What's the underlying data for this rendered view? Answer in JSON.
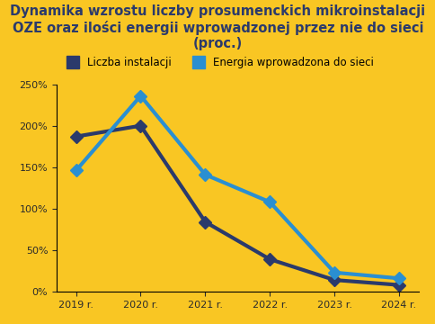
{
  "chart_data": {
    "type": "line",
    "title": "Dynamika wzrostu liczby prosumenckich mikroinstalacji OZE oraz ilości energii wprowadzonej przez nie do sieci (proc.)",
    "categories": [
      "2019 r.",
      "2020 r.",
      "2021 r.",
      "2022 r.",
      "2023 r.",
      "2024 r."
    ],
    "series": [
      {
        "name": "Liczba instalacji",
        "color": "#2b3a6b",
        "marker": "D",
        "line_style": "solid",
        "values": [
          187,
          200,
          84,
          39,
          14,
          8
        ]
      },
      {
        "name": "Energia wprowadzona do sieci",
        "color": "#2a8fd1",
        "marker": "D",
        "line_style": "solid",
        "values": [
          146,
          236,
          141,
          108,
          23,
          16
        ]
      }
    ],
    "ylim": [
      0,
      250
    ],
    "yticks": [
      {
        "value": 0,
        "label": "0%"
      },
      {
        "value": 50,
        "label": "50%"
      },
      {
        "value": 100,
        "label": "100%"
      },
      {
        "value": 150,
        "label": "150%"
      },
      {
        "value": 200,
        "label": "200%"
      },
      {
        "value": 250,
        "label": "250%"
      }
    ],
    "grid": false,
    "legend": "upper center"
  }
}
